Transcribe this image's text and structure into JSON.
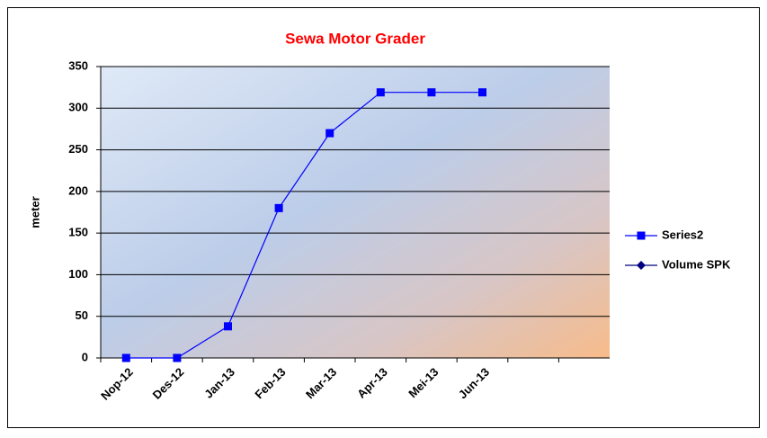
{
  "chart_data": {
    "type": "line",
    "title": "Sewa Motor Grader",
    "y_label": "meter",
    "categories": [
      "Nop-12",
      "Des-12",
      "Jan-13",
      "Feb-13",
      "Mar-13",
      "Apr-13",
      "Mei-13",
      "Jun-13",
      null,
      null
    ],
    "series": [
      {
        "name": "Series2",
        "color": "#0000ff",
        "marker": "square",
        "values": [
          0,
          0,
          38,
          180,
          270,
          319,
          319,
          319,
          null,
          null
        ]
      },
      {
        "name": "Volume SPK",
        "color": "#000080",
        "marker": "diamond",
        "values": [
          null,
          null,
          null,
          null,
          null,
          null,
          null,
          null,
          null,
          null
        ]
      }
    ],
    "ylim": [
      0,
      350
    ],
    "yticks": [
      0,
      50,
      100,
      150,
      200,
      250,
      300,
      350
    ],
    "grid": true,
    "legend": "right"
  }
}
